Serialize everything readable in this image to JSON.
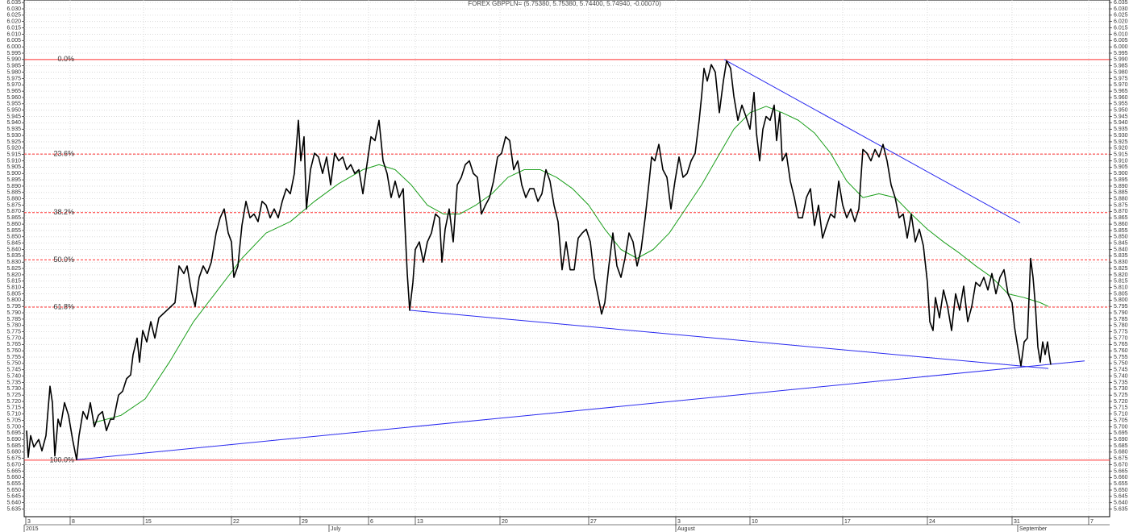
{
  "chart_data": {
    "type": "line",
    "title": "FOREX GBPPLN= (5.75380, 5.75380, 5.74400, 5.74940, -0.00070)",
    "xlim": [
      0,
      134.6
    ],
    "ylim": [
      5.629,
      6.037
    ],
    "grid": true,
    "xticks": [
      {
        "value": 0.2,
        "label": "3"
      },
      {
        "value": 5.7,
        "label": "8"
      },
      {
        "value": 14.8,
        "label": "15"
      },
      {
        "value": 25.7,
        "label": "22"
      },
      {
        "value": 34.2,
        "label": "29"
      },
      {
        "value": 42.7,
        "label": "6"
      },
      {
        "value": 48.5,
        "label": "13"
      },
      {
        "value": 59.0,
        "label": "20"
      },
      {
        "value": 70.0,
        "label": "27"
      },
      {
        "value": 80.8,
        "label": "3"
      },
      {
        "value": 90.0,
        "label": "10"
      },
      {
        "value": 101.5,
        "label": "17"
      },
      {
        "value": 112.0,
        "label": "24"
      },
      {
        "value": 122.5,
        "label": "31"
      },
      {
        "value": 132.0,
        "label": "7"
      }
    ],
    "month_labels": [
      {
        "value": 0.0,
        "label": "2015"
      },
      {
        "value": 37.8,
        "label": "July"
      },
      {
        "value": 80.8,
        "label": "August"
      },
      {
        "value": 123.2,
        "label": "September"
      }
    ],
    "yticks": [
      6.035,
      {
        "value": 6.03,
        "label": "6.030"
      },
      6.025,
      {
        "value": 6.02,
        "label": "6.020"
      },
      6.015,
      {
        "value": 6.01,
        "label": "6.010"
      },
      6.005,
      {
        "value": 6,
        "label": "6.000"
      },
      5.995,
      {
        "value": 5.99,
        "label": "5.990"
      },
      5.985,
      {
        "value": 5.98,
        "label": "5.980"
      },
      5.975,
      {
        "value": 5.97,
        "label": "5.970"
      },
      5.965,
      {
        "value": 5.96,
        "label": "5.960"
      },
      5.955,
      {
        "value": 5.95,
        "label": "5.950"
      },
      5.945,
      {
        "value": 5.94,
        "label": "5.940"
      },
      5.935,
      {
        "value": 5.93,
        "label": "5.930"
      },
      5.925,
      {
        "value": 5.92,
        "label": "5.920"
      },
      5.915,
      {
        "value": 5.91,
        "label": "5.910"
      },
      5.905,
      {
        "value": 5.9,
        "label": "5.900"
      },
      5.895,
      {
        "value": 5.89,
        "label": "5.890"
      },
      5.885,
      {
        "value": 5.88,
        "label": "5.880"
      },
      5.875,
      {
        "value": 5.87,
        "label": "5.870"
      },
      5.865,
      {
        "value": 5.86,
        "label": "5.860"
      },
      5.855,
      {
        "value": 5.85,
        "label": "5.850"
      },
      5.845,
      {
        "value": 5.84,
        "label": "5.840"
      },
      5.835,
      {
        "value": 5.83,
        "label": "5.830"
      },
      5.825,
      {
        "value": 5.82,
        "label": "5.820"
      },
      5.815,
      {
        "value": 5.81,
        "label": "5.810"
      },
      5.805,
      {
        "value": 5.8,
        "label": "5.800"
      },
      5.795,
      {
        "value": 5.79,
        "label": "5.790"
      },
      5.785,
      {
        "value": 5.78,
        "label": "5.780"
      },
      5.775,
      {
        "value": 5.77,
        "label": "5.770"
      },
      5.765,
      {
        "value": 5.76,
        "label": "5.760"
      },
      5.755,
      {
        "value": 5.75,
        "label": "5.750"
      },
      5.745,
      {
        "value": 5.74,
        "label": "5.740"
      },
      5.735,
      {
        "value": 5.73,
        "label": "5.730"
      },
      5.725,
      {
        "value": 5.72,
        "label": "5.720"
      },
      5.715,
      {
        "value": 5.71,
        "label": "5.710"
      },
      5.705,
      {
        "value": 5.7,
        "label": "5.700"
      },
      5.695,
      {
        "value": 5.69,
        "label": "5.690"
      },
      5.685,
      {
        "value": 5.68,
        "label": "5.680"
      },
      5.675,
      {
        "value": 5.67,
        "label": "5.670"
      },
      5.665,
      {
        "value": 5.66,
        "label": "5.660"
      },
      5.655,
      {
        "value": 5.65,
        "label": "5.650"
      },
      5.645,
      {
        "value": 5.64,
        "label": "5.640"
      },
      5.635
    ],
    "series": [
      {
        "color": "#000000",
        "x": [
          0.3,
          0.5,
          0.8,
          1.2,
          1.8,
          2.2,
          2.7,
          3.2,
          3.5,
          3.8,
          4.2,
          4.5,
          5.0,
          5.5,
          6.0,
          6.5,
          6.8,
          7.3,
          7.8,
          8.2,
          8.7,
          9.2,
          9.7,
          10.2,
          10.7,
          11.1,
          11.7,
          12.2,
          12.7,
          13.2,
          13.5,
          14.0,
          14.3,
          14.7,
          15.2,
          15.7,
          16.2,
          16.7,
          17.2,
          17.7,
          18.2,
          18.7,
          19.2,
          19.8,
          20.2,
          20.7,
          21.2,
          21.7,
          22.2,
          22.7,
          23.2,
          23.8,
          24.3,
          24.8,
          25.3,
          25.7,
          26.0,
          26.5,
          27.0,
          27.5,
          28.0,
          28.5,
          29.0,
          29.5,
          30.0,
          30.5,
          31.0,
          31.5,
          32.0,
          32.5,
          33.0,
          33.5,
          34.0,
          34.3,
          34.7,
          35.0,
          35.5,
          36.0,
          36.5,
          37.0,
          37.5,
          38.0,
          38.5,
          39.0,
          39.5,
          40.0,
          40.5,
          41.0,
          41.5,
          42.0,
          42.5,
          43.0,
          43.5,
          44.0,
          44.5,
          45.0,
          45.5,
          46.0,
          46.5,
          47.0,
          47.5,
          47.8,
          48.2,
          48.5,
          49.0,
          49.5,
          50.0,
          50.5,
          51.0,
          51.5,
          51.8,
          52.2,
          52.7,
          53.2,
          53.7,
          54.2,
          54.7,
          55.2,
          55.7,
          56.2,
          56.7,
          57.2,
          57.7,
          58.2,
          58.7,
          59.2,
          59.7,
          60.2,
          60.7,
          61.2,
          61.7,
          62.2,
          62.7,
          63.2,
          63.7,
          64.2,
          64.7,
          65.2,
          65.7,
          66.2,
          66.7,
          67.2,
          67.7,
          68.2,
          68.7,
          69.2,
          69.7,
          70.2,
          70.7,
          71.2,
          71.6,
          72.0,
          72.5,
          73.0,
          73.5,
          74.0,
          74.5,
          75.0,
          75.5,
          76.0,
          76.5,
          77.0,
          77.5,
          77.8,
          78.2,
          78.7,
          79.2,
          79.7,
          80.2,
          80.7,
          81.2,
          81.7,
          82.2,
          82.7,
          83.2,
          83.7,
          84.0,
          84.3,
          84.7,
          85.2,
          85.7,
          86.2,
          86.7,
          87.1,
          87.6,
          88.0,
          88.5,
          89.0,
          89.5,
          90.0,
          90.5,
          90.8,
          91.2,
          91.6,
          92.0,
          92.5,
          93.0,
          93.3,
          93.7,
          94.0,
          94.5,
          95.0,
          95.5,
          96.0,
          96.5,
          97.0,
          97.5,
          98.0,
          98.5,
          99.0,
          99.5,
          100.0,
          100.5,
          101.0,
          101.5,
          102.0,
          102.5,
          103.0,
          103.5,
          104.0,
          104.5,
          105.0,
          105.5,
          106.0,
          106.5,
          107.0,
          107.5,
          108.0,
          108.5,
          109.0,
          109.5,
          110.0,
          110.5,
          111.0,
          111.5,
          112.0,
          112.3,
          112.7,
          113.0,
          113.5,
          114.0,
          114.5,
          115.0,
          115.5,
          116.0,
          116.5,
          117.0,
          117.5,
          118.0,
          118.5,
          119.0,
          119.5,
          120.0,
          120.5,
          121.0,
          121.5,
          122.0,
          122.5,
          122.8,
          123.2,
          123.6,
          124.0,
          124.4,
          124.8,
          125.1,
          125.4,
          125.7,
          126.0,
          126.3,
          126.6,
          126.9,
          127.1,
          127.3
        ],
        "values": [
          5.697,
          5.676,
          5.693,
          5.684,
          5.69,
          5.681,
          5.693,
          5.732,
          5.719,
          5.677,
          5.706,
          5.7,
          5.719,
          5.709,
          5.69,
          5.674,
          5.693,
          5.712,
          5.706,
          5.719,
          5.7,
          5.709,
          5.712,
          5.697,
          5.706,
          5.706,
          5.725,
          5.728,
          5.738,
          5.741,
          5.757,
          5.77,
          5.751,
          5.776,
          5.767,
          5.783,
          5.77,
          5.786,
          5.789,
          5.792,
          5.795,
          5.798,
          5.827,
          5.821,
          5.827,
          5.808,
          5.795,
          5.818,
          5.827,
          5.821,
          5.83,
          5.853,
          5.865,
          5.872,
          5.853,
          5.846,
          5.818,
          5.827,
          5.859,
          5.878,
          5.865,
          5.868,
          5.862,
          5.878,
          5.875,
          5.865,
          5.872,
          5.865,
          5.878,
          5.888,
          5.884,
          5.9,
          5.942,
          5.91,
          5.929,
          5.872,
          5.903,
          5.916,
          5.913,
          5.9,
          5.913,
          5.891,
          5.916,
          5.91,
          5.913,
          5.903,
          5.907,
          5.9,
          5.903,
          5.884,
          5.907,
          5.929,
          5.926,
          5.942,
          5.91,
          5.9,
          5.881,
          5.894,
          5.881,
          5.888,
          5.821,
          5.792,
          5.814,
          5.84,
          5.846,
          5.83,
          5.846,
          5.853,
          5.868,
          5.865,
          5.83,
          5.856,
          5.872,
          5.846,
          5.891,
          5.897,
          5.907,
          5.91,
          5.9,
          5.897,
          5.868,
          5.875,
          5.881,
          5.894,
          5.913,
          5.916,
          5.929,
          5.926,
          5.903,
          5.91,
          5.891,
          5.881,
          5.888,
          5.888,
          5.878,
          5.884,
          5.903,
          5.894,
          5.875,
          5.862,
          5.824,
          5.846,
          5.824,
          5.824,
          5.849,
          5.853,
          5.856,
          5.846,
          5.818,
          5.802,
          5.789,
          5.798,
          5.827,
          5.853,
          5.827,
          5.818,
          5.833,
          5.853,
          5.846,
          5.827,
          5.84,
          5.865,
          5.894,
          5.913,
          5.91,
          5.923,
          5.903,
          5.897,
          5.872,
          5.894,
          5.913,
          5.897,
          5.9,
          5.91,
          5.916,
          5.942,
          5.961,
          5.983,
          5.973,
          5.986,
          5.98,
          5.948,
          5.973,
          5.989,
          5.983,
          5.961,
          5.942,
          5.954,
          5.945,
          5.935,
          5.964,
          5.932,
          5.91,
          5.935,
          5.945,
          5.942,
          5.954,
          5.926,
          5.948,
          5.91,
          5.916,
          5.894,
          5.881,
          5.865,
          5.865,
          5.881,
          5.888,
          5.859,
          5.875,
          5.849,
          5.859,
          5.868,
          5.865,
          5.894,
          5.875,
          5.865,
          5.872,
          5.862,
          5.872,
          5.919,
          5.916,
          5.91,
          5.919,
          5.913,
          5.923,
          5.91,
          5.891,
          5.881,
          5.865,
          5.868,
          5.849,
          5.868,
          5.846,
          5.856,
          5.843,
          5.814,
          5.783,
          5.776,
          5.802,
          5.786,
          5.808,
          5.795,
          5.776,
          5.805,
          5.792,
          5.811,
          5.783,
          5.795,
          5.814,
          5.811,
          5.818,
          5.808,
          5.821,
          5.805,
          5.818,
          5.824,
          5.805,
          5.798,
          5.779,
          5.763,
          5.748,
          5.767,
          5.77,
          5.833,
          5.818,
          5.795,
          5.763,
          5.751,
          5.767,
          5.757,
          5.767,
          5.757,
          5.749
        ]
      },
      {
        "color": "#1a9e1a",
        "x": [
          8.5,
          12.0,
          15.0,
          18.0,
          21.0,
          24.0,
          27.0,
          30.0,
          33.0,
          36.0,
          39.0,
          42.0,
          44.0,
          46.0,
          48.0,
          50.0,
          52.0,
          54.0,
          56.0,
          58.0,
          60.0,
          62.0,
          64.0,
          66.0,
          68.0,
          70.0,
          72.0,
          74.0,
          76.0,
          78.0,
          80.0,
          82.0,
          84.0,
          86.0,
          88.0,
          90.0,
          92.0,
          94.0,
          96.0,
          98.0,
          100.0,
          102.0,
          104.0,
          106.0,
          108.0,
          110.0,
          112.0,
          114.0,
          116.0,
          118.0,
          120.0,
          122.0,
          124.0,
          126.0,
          127.0
        ],
        "values": [
          5.703,
          5.709,
          5.722,
          5.751,
          5.783,
          5.808,
          5.833,
          5.853,
          5.862,
          5.878,
          5.892,
          5.903,
          5.907,
          5.903,
          5.891,
          5.875,
          5.868,
          5.868,
          5.875,
          5.884,
          5.897,
          5.903,
          5.903,
          5.897,
          5.888,
          5.875,
          5.856,
          5.84,
          5.833,
          5.84,
          5.853,
          5.872,
          5.891,
          5.913,
          5.935,
          5.948,
          5.953,
          5.948,
          5.942,
          5.932,
          5.916,
          5.894,
          5.881,
          5.884,
          5.881,
          5.868,
          5.856,
          5.846,
          5.837,
          5.827,
          5.818,
          5.805,
          5.802,
          5.798,
          5.795
        ]
      }
    ],
    "trendlines": [
      {
        "color": "#2a2af0",
        "x": [
          86.8,
          123.5
        ],
        "values": [
          5.99,
          5.861
        ]
      },
      {
        "color": "#2a2af0",
        "x": [
          47.8,
          127.0
        ],
        "values": [
          5.792,
          5.746
        ]
      },
      {
        "color": "#2a2af0",
        "x": [
          6.5,
          131.5
        ],
        "values": [
          5.674,
          5.752
        ]
      }
    ],
    "fibonacci": {
      "color": "#ff3030",
      "high": 5.99,
      "low": 5.6736,
      "levels": [
        {
          "value": 0,
          "label": "0.0%",
          "dashed": false
        },
        {
          "value": 23.6,
          "label": "23.6%",
          "dashed": true
        },
        {
          "value": 38.2,
          "label": "38.2%",
          "dashed": true
        },
        {
          "value": 50,
          "label": "50.0%",
          "dashed": true
        },
        {
          "value": 61.8,
          "label": "61.8%",
          "dashed": true
        },
        {
          "value": 100,
          "label": "100.0%",
          "dashed": false
        }
      ]
    }
  }
}
